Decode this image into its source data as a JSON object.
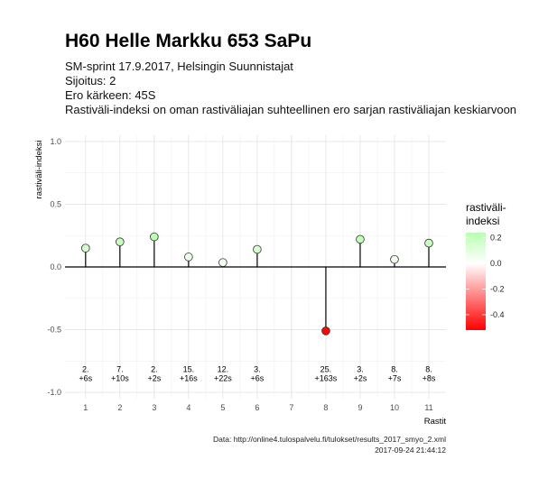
{
  "header": {
    "title": "H60 Helle Markku 653 SaPu",
    "subtitle_lines": [
      "SM-sprint 17.9.2017, Helsingin Suunnistajat",
      "Sijoitus: 2",
      "Ero kärkeen: 45S",
      "Rastiväli-indeksi on oman rastiväliajan suhteellinen ero sarjan rastiväliajan keskiarvoon"
    ]
  },
  "chart_data": {
    "type": "lollipop",
    "xlabel": "Rastit",
    "ylabel": "rastiväli-indeksi",
    "xlim": [
      0.4,
      11.5
    ],
    "ylim": [
      -1.05,
      1.05
    ],
    "x_ticks": [
      1,
      2,
      3,
      4,
      5,
      6,
      7,
      8,
      9,
      10,
      11
    ],
    "y_ticks": [
      -1.0,
      -0.5,
      0.0,
      0.5,
      1.0
    ],
    "y_tick_labels": [
      "-1.0",
      "-0.5",
      "0.0",
      "0.5",
      "1.0"
    ],
    "grid": true,
    "points": [
      {
        "x": 1,
        "y": 0.15,
        "rank": "2.",
        "diff": "+6s"
      },
      {
        "x": 2,
        "y": 0.2,
        "rank": "7.",
        "diff": "+10s"
      },
      {
        "x": 3,
        "y": 0.24,
        "rank": "2.",
        "diff": "+2s"
      },
      {
        "x": 4,
        "y": 0.08,
        "rank": "15.",
        "diff": "+16s"
      },
      {
        "x": 5,
        "y": 0.035,
        "rank": "12.",
        "diff": "+22s"
      },
      {
        "x": 6,
        "y": 0.14,
        "rank": "3.",
        "diff": "+6s"
      },
      {
        "x": 8,
        "y": -0.51,
        "rank": "25.",
        "diff": "+163s"
      },
      {
        "x": 9,
        "y": 0.22,
        "rank": "3.",
        "diff": "+2s"
      },
      {
        "x": 10,
        "y": 0.06,
        "rank": "8.",
        "diff": "+7s"
      },
      {
        "x": 11,
        "y": 0.19,
        "rank": "8.",
        "diff": "+8s"
      }
    ],
    "annotation_y": -0.86,
    "legend": {
      "title_lines": [
        "rastiväli-",
        "indeksi"
      ],
      "placement": "right",
      "range": [
        -0.52,
        0.24
      ],
      "ticks": [
        0.2,
        0.0,
        -0.2,
        -0.4
      ],
      "tick_labels": [
        "0.2",
        "0.0",
        "-0.2",
        "-0.4"
      ],
      "low_color": "#ff0000",
      "mid_color": "#ffffff",
      "high_color": "#b9ffb0"
    },
    "caption_lines": [
      "Data: http://online4.tulospalvelu.fi/tulokset/results_2017_smyo_2.xml",
      "2017-09-24 21:44:12"
    ]
  }
}
